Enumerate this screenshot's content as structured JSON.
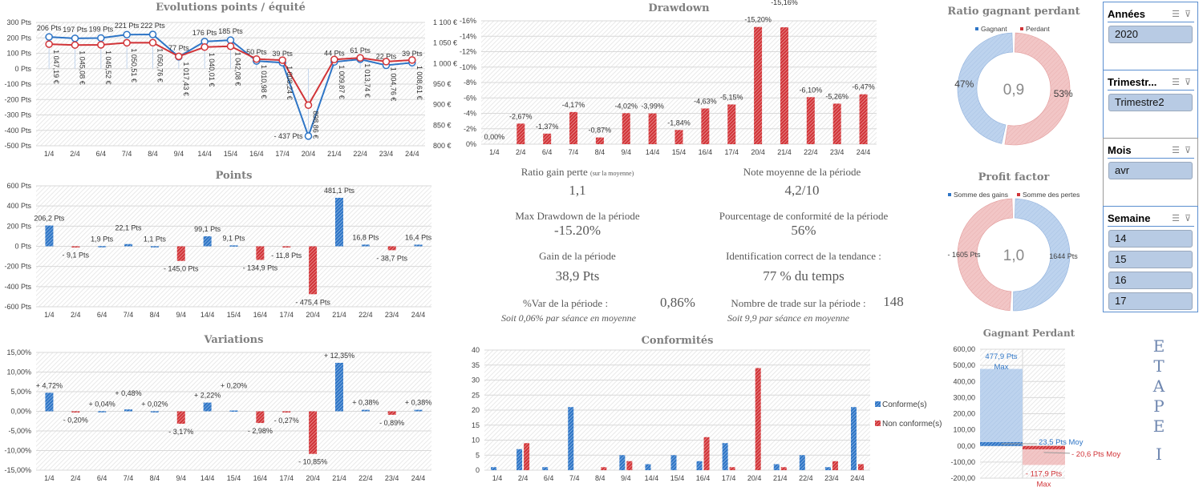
{
  "colors": {
    "blue": "#2e75c6",
    "red": "#d13438",
    "blue_light": "#b4cde9",
    "red_light": "#f0c0c0",
    "grid": "#d9d9d9",
    "title": "#7f7f7f"
  },
  "chart_data": [
    {
      "id": "evolution",
      "type": "line",
      "title": "Evolutions points / équité",
      "categories": [
        "1/4",
        "2/4",
        "6/4",
        "7/4",
        "8/4",
        "9/4",
        "14/4",
        "15/4",
        "16/4",
        "17/4",
        "20/4",
        "21/4",
        "22/4",
        "23/4",
        "24/4"
      ],
      "y_left": {
        "ticks": [
          "300 Pts",
          "200 Pts",
          "100 Pts",
          "0 Pts",
          "-100 Pts",
          "-200 Pts",
          "-300 Pts",
          "-400 Pts",
          "-500 Pts"
        ],
        "range": [
          -500,
          300
        ]
      },
      "y_right": {
        "ticks": [
          "1 100 €",
          "1 050 €",
          "1 000 €",
          "950 €",
          "900 €",
          "850 €",
          "800 €"
        ],
        "range": [
          800,
          1100
        ]
      },
      "series": [
        {
          "axis": "left",
          "color": "blue",
          "values": [
            206,
            197,
            199,
            221,
            222,
            77,
            176,
            185,
            50,
            39,
            -437,
            44,
            61,
            22,
            39
          ],
          "labels": [
            "206 Pts",
            "197 Pts",
            "199 Pts",
            "221 Pts",
            "222 Pts",
            "77 Pts",
            "176 Pts",
            "185 Pts",
            "50 Pts",
            "39 Pts",
            "- 437 Pts",
            "44 Pts",
            "61 Pts",
            "22 Pts",
            "39 Pts"
          ]
        },
        {
          "axis": "right",
          "color": "red",
          "values": [
            1047.19,
            1045.08,
            1045.52,
            1050.51,
            1050.76,
            1017.43,
            1040.01,
            1042.08,
            1010.98,
            1008.24,
            898.86,
            1009.87,
            1013.74,
            1004.76,
            1008.61
          ],
          "labels": [
            "1 047,19 €",
            "1 045,08 €",
            "1 045,52 €",
            "1 050,51 €",
            "1 050,76 €",
            "1 017,43 €",
            "1 040,01 €",
            "1 042,08 €",
            "1 010,98 €",
            "1 008,24 €",
            "898,86 €",
            "1 009,87 €",
            "1 013,74 €",
            "1 004,76 €",
            "1 008,61 €"
          ]
        }
      ]
    },
    {
      "id": "drawdown",
      "type": "bar",
      "title": "Drawdown",
      "categories": [
        "1/4",
        "2/4",
        "6/4",
        "7/4",
        "8/4",
        "9/4",
        "14/4",
        "15/4",
        "16/4",
        "17/4",
        "20/4",
        "21/4",
        "22/4",
        "23/4",
        "24/4"
      ],
      "y": {
        "ticks": [
          "-16%",
          "-14%",
          "-12%",
          "-10%",
          "-8%",
          "-6%",
          "-4%",
          "-2%",
          "0%"
        ],
        "range": [
          0,
          -16
        ]
      },
      "values": [
        0,
        -2.67,
        -1.37,
        -4.17,
        -0.87,
        -4.02,
        -3.99,
        -1.84,
        -4.63,
        -5.15,
        -15.2,
        -15.16,
        -6.1,
        -5.26,
        -6.47
      ],
      "labels": [
        "0,00%",
        "-2,67%",
        "-1,37%",
        "-4,17%",
        "-0,87%",
        "-4,02%",
        "-3,99%",
        "-1,84%",
        "-4,63%",
        "-5,15%",
        "-15,20%",
        "-15,16%",
        "-6,10%",
        "-5,26%",
        "-6,47%"
      ]
    },
    {
      "id": "points",
      "type": "bar",
      "title": "Points",
      "categories": [
        "1/4",
        "2/4",
        "6/4",
        "7/4",
        "8/4",
        "9/4",
        "14/4",
        "15/4",
        "16/4",
        "17/4",
        "20/4",
        "21/4",
        "22/4",
        "23/4",
        "24/4"
      ],
      "y": {
        "ticks": [
          "600 Pts",
          "400 Pts",
          "200 Pts",
          "0 Pts",
          "-200 Pts",
          "-400 Pts",
          "-600 Pts"
        ],
        "range": [
          -600,
          600
        ]
      },
      "values": [
        206.2,
        -9.1,
        1.9,
        22.1,
        1.1,
        -145.0,
        99.1,
        9.1,
        -134.9,
        -11.8,
        -475.4,
        481.1,
        16.8,
        -38.7,
        16.4
      ],
      "labels": [
        "206,2 Pts",
        "- 9,1 Pts",
        "1,9 Pts",
        "22,1 Pts",
        "1,1 Pts",
        "- 145,0 Pts",
        "99,1 Pts",
        "9,1 Pts",
        "- 134,9 Pts",
        "- 11,8 Pts",
        "- 475,4 Pts",
        "481,1 Pts",
        "16,8 Pts",
        "- 38,7 Pts",
        "16,4 Pts"
      ]
    },
    {
      "id": "variations",
      "type": "bar",
      "title": "Variations",
      "categories": [
        "1/4",
        "2/4",
        "6/4",
        "7/4",
        "8/4",
        "9/4",
        "14/4",
        "15/4",
        "16/4",
        "17/4",
        "20/4",
        "21/4",
        "22/4",
        "23/4",
        "24/4"
      ],
      "y": {
        "ticks": [
          "15,00%",
          "10,00%",
          "5,00%",
          "0,00%",
          "-5,00%",
          "-10,00%",
          "-15,00%"
        ],
        "range": [
          -15,
          15
        ]
      },
      "values": [
        4.72,
        -0.2,
        0.04,
        0.48,
        0.02,
        -3.17,
        2.22,
        0.2,
        -2.98,
        -0.27,
        -10.85,
        12.35,
        0.38,
        -0.89,
        0.38
      ],
      "labels": [
        "+ 4,72%",
        "- 0,20%",
        "+ 0,04%",
        "+ 0,48%",
        "+ 0,02%",
        "- 3,17%",
        "+ 2,22%",
        "+ 0,20%",
        "- 2,98%",
        "- 0,27%",
        "- 10,85%",
        "+ 12,35%",
        "+ 0,38%",
        "- 0,89%",
        "+ 0,38%"
      ]
    },
    {
      "id": "conformites",
      "type": "bar",
      "title": "Conformités",
      "categories": [
        "1/4",
        "2/4",
        "6/4",
        "7/4",
        "8/4",
        "9/4",
        "14/4",
        "15/4",
        "16/4",
        "17/4",
        "20/4",
        "21/4",
        "22/4",
        "23/4",
        "24/4"
      ],
      "y": {
        "ticks": [
          "40",
          "35",
          "30",
          "25",
          "20",
          "15",
          "10",
          "5",
          "0"
        ],
        "range": [
          0,
          40
        ]
      },
      "legend": "right",
      "series": [
        {
          "name": "Conforme(s)",
          "color": "blue",
          "values": [
            1,
            7,
            1,
            21,
            0,
            5,
            2,
            5,
            3,
            9,
            0,
            2,
            5,
            1,
            21
          ]
        },
        {
          "name": "Non conforme(s)",
          "color": "red",
          "values": [
            0,
            9,
            0,
            0,
            1,
            3,
            0,
            0,
            11,
            1,
            34,
            1,
            0,
            3,
            2
          ]
        }
      ]
    },
    {
      "id": "ratio",
      "type": "pie",
      "title": "Ratio gagnant perdant",
      "center": "0,9",
      "slices": [
        {
          "name": "Perdant",
          "value": 53,
          "label": "53%",
          "color": "red"
        },
        {
          "name": "Gagnant",
          "value": 47,
          "label": "47%",
          "color": "blue"
        }
      ],
      "legend": [
        "Gagnant",
        "Perdant"
      ]
    },
    {
      "id": "profit",
      "type": "pie",
      "title": "Profit factor",
      "center": "1,0",
      "slices": [
        {
          "name": "Somme des gains",
          "value": 1644,
          "label": "1644 Pts",
          "color": "blue"
        },
        {
          "name": "Somme des pertes",
          "value": 1605,
          "label": "- 1605 Pts",
          "color": "red"
        }
      ],
      "legend": [
        "Somme des gains",
        "Somme des pertes"
      ]
    },
    {
      "id": "gagnant_perdant",
      "type": "bar",
      "title": "Gagnant Perdant",
      "y": {
        "ticks": [
          "600,00",
          "500,00",
          "400,00",
          "300,00",
          "200,00",
          "100,00",
          "00,00",
          "-100,00",
          "-200,00"
        ],
        "range": [
          -200,
          600
        ]
      },
      "bars": [
        {
          "max": 477.9,
          "moy": 23.5,
          "max_label": "477,9 Pts",
          "max_sub": "Max",
          "moy_label": "23,5 Pts Moy",
          "color": "blue"
        },
        {
          "max": -117.9,
          "moy": -20.6,
          "max_label": "- 117,9 Pts",
          "max_sub": "Max",
          "moy_label": "- 20,6 Pts Moy",
          "color": "red"
        }
      ]
    }
  ],
  "stats": {
    "ratio": {
      "label": "Ratio gain perte",
      "sub": "(sur la moyenne)",
      "value": "1,1"
    },
    "note": {
      "label": "Note moyenne de la période",
      "value": "4,2/10"
    },
    "maxdd": {
      "label": "Max Drawdown de la période",
      "value": "-15.20%"
    },
    "conformite": {
      "label": "Pourcentage de conformité de la période",
      "value": "56%"
    },
    "gain": {
      "label": "Gain de la période",
      "value": "38,9 Pts"
    },
    "tendance": {
      "label": "Identification correct de la tendance :",
      "value": "77 % du temps"
    },
    "var": {
      "label": "%Var de la période :",
      "value": "0,86%",
      "note": "Soit 0,06% par séance en moyenne"
    },
    "trades": {
      "label": "Nombre de trade sur la période :",
      "value": "148",
      "note": "Soit 9,9 par séance en moyenne"
    }
  },
  "slicers": [
    {
      "title": "Années",
      "items": [
        "2020"
      ]
    },
    {
      "title": "Trimestr...",
      "items": [
        "Trimestre2"
      ]
    },
    {
      "title": "Mois",
      "items": [
        "avr"
      ]
    },
    {
      "title": "Semaine",
      "items": [
        "14",
        "15",
        "16",
        "17"
      ]
    }
  ],
  "slicer_icons": [
    "multi-select-icon",
    "clear-filter-icon"
  ],
  "etape": [
    "E",
    "T",
    "A",
    "P",
    "E",
    "I"
  ]
}
